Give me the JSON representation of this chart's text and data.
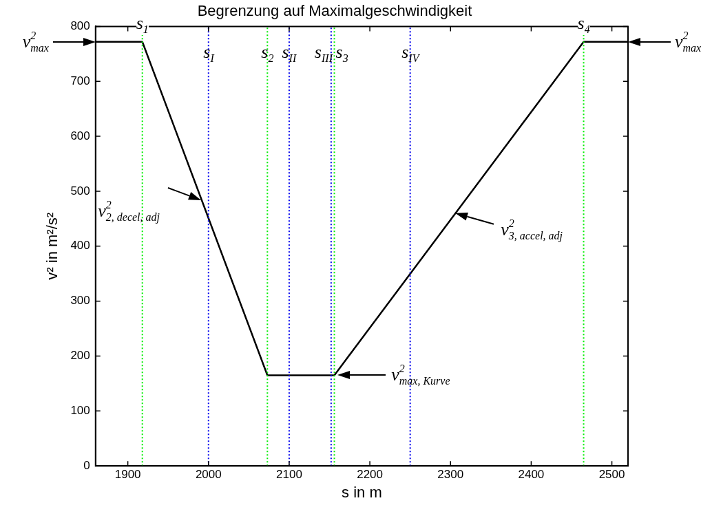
{
  "chart_data": {
    "type": "line",
    "title": "Begrenzung auf Maximalgeschwindigkeit",
    "xlabel": "s in m",
    "ylabel": "v² in m²/s²",
    "x": [
      1860,
      1918,
      2073,
      2156,
      2465,
      2520
    ],
    "series": [
      {
        "color": "#000000",
        "values": [
          772,
          772,
          165,
          165,
          772,
          772
        ]
      }
    ],
    "xlim": [
      1860,
      2520
    ],
    "xticks": [
      1900,
      2000,
      2100,
      2200,
      2300,
      2400,
      2500
    ],
    "ylim": [
      0,
      800
    ],
    "yticks": [
      0,
      100,
      200,
      300,
      400,
      500,
      600,
      700,
      800
    ],
    "grid": false,
    "legend": false,
    "marker": "none",
    "line_style": "solid",
    "ref_lines": [
      {
        "axis": "x",
        "value": 1918,
        "label": "s$_{1}$",
        "color": "#00ee00",
        "line_style": "dotted"
      },
      {
        "axis": "x",
        "value": 2000,
        "label": "s$_{I}$",
        "color": "#0000ee",
        "line_style": "dotted"
      },
      {
        "axis": "x",
        "value": 2073,
        "label": "s$_{2}$",
        "color": "#00ee00",
        "line_style": "dotted"
      },
      {
        "axis": "x",
        "value": 2100,
        "label": "s$_{II}$",
        "color": "#0000ee",
        "line_style": "dotted"
      },
      {
        "axis": "x",
        "value": 2152,
        "label": "s$_{III}$",
        "color": "#0000ee",
        "line_style": "dotted"
      },
      {
        "axis": "x",
        "value": 2156,
        "label": "s$_{3}$",
        "color": "#00ee00",
        "line_style": "dotted"
      },
      {
        "axis": "x",
        "value": 2250,
        "label": "s$_{IV}$",
        "color": "#0000ee",
        "line_style": "dotted"
      },
      {
        "axis": "x",
        "value": 2465,
        "label": "s$_{4}$",
        "color": "#00ee00",
        "line_style": "dotted"
      }
    ],
    "annotations": [
      {
        "text": "v$^{2}$$_{max}$",
        "x": 1860,
        "y": 772
      },
      {
        "text": "v$^{2}$$_{2, decel, adj}$",
        "x": 1991,
        "y": 484
      },
      {
        "text": "v$^{2}$$_{max, Kurve}$",
        "x": 2160,
        "y": 165
      },
      {
        "text": "v$^{2}$$_{3, accel, adj}$",
        "x": 2306,
        "y": 460
      },
      {
        "text": "v$^{2}$$_{max}$",
        "x": 2520,
        "y": 772
      }
    ]
  }
}
